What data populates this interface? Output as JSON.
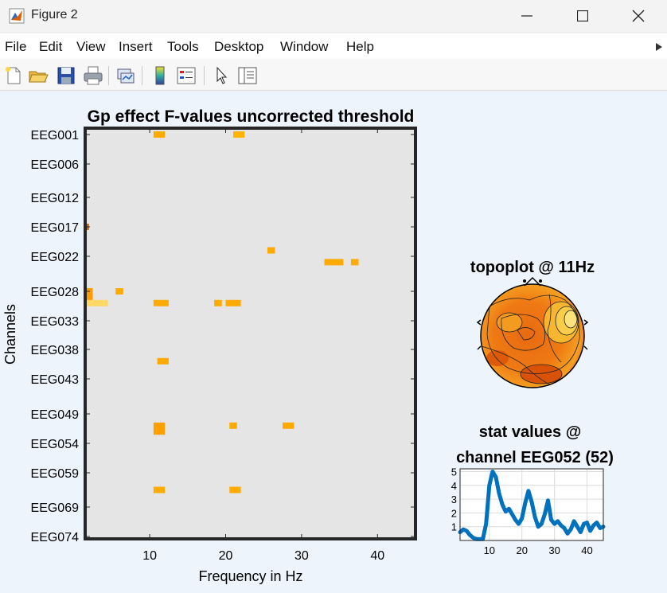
{
  "window": {
    "title": "Figure 2",
    "controls": [
      "minimize",
      "maximize",
      "close"
    ]
  },
  "menu": {
    "items": [
      "File",
      "Edit",
      "View",
      "Insert",
      "Tools",
      "Desktop",
      "Window",
      "Help"
    ]
  },
  "toolbar": {
    "icons": [
      "new-figure-icon",
      "open-file-icon",
      "save-icon",
      "print-icon",
      "link-plot-icon",
      "insert-colorbar-icon",
      "insert-legend-icon",
      "edit-plot-arrow-icon",
      "show-plot-tools-icon"
    ]
  },
  "heatmap": {
    "title": "Gp effect F-values uncorrected threshold",
    "xlabel": "Frequency in Hz",
    "ylabel": "Channels"
  },
  "topoplot": {
    "title": "topoplot @ 11Hz"
  },
  "lineplot": {
    "title_line1": "stat values @",
    "title_line2": "channel EEG052 (52)"
  },
  "chart_data": [
    {
      "type": "heatmap",
      "title": "Gp effect F-values uncorrected threshold",
      "xlabel": "Frequency in Hz",
      "ylabel": "Channels",
      "xlim": [
        1.5,
        45
      ],
      "x_ticks": [
        10,
        20,
        30,
        40
      ],
      "y_tick_labels": [
        "EEG001",
        "EEG006",
        "EEG012",
        "EEG017",
        "EEG022",
        "EEG028",
        "EEG033",
        "EEG038",
        "EEG043",
        "EEG049",
        "EEG054",
        "EEG059",
        "EEG069",
        "EEG074"
      ],
      "y_tick_channels": [
        1,
        6,
        12,
        17,
        22,
        28,
        33,
        38,
        43,
        49,
        54,
        59,
        65,
        70
      ],
      "ylim": [
        1,
        70
      ],
      "background": "#e5e5e5",
      "significant_cells": [
        {
          "x0": 10.5,
          "x1": 12,
          "ch0": 1,
          "ch1": 1,
          "color": "#ffaa00"
        },
        {
          "x0": 21,
          "x1": 22.5,
          "ch0": 1,
          "ch1": 1,
          "color": "#ffb400"
        },
        {
          "x0": 1.5,
          "x1": 2,
          "ch0": 17,
          "ch1": 17,
          "color": "#cc6600"
        },
        {
          "x0": 25.5,
          "x1": 26.5,
          "ch0": 21,
          "ch1": 21,
          "color": "#ffaa00"
        },
        {
          "x0": 33,
          "x1": 35.5,
          "ch0": 23,
          "ch1": 23,
          "color": "#ffaa00"
        },
        {
          "x0": 36.5,
          "x1": 37.5,
          "ch0": 23,
          "ch1": 23,
          "color": "#ffaa00"
        },
        {
          "x0": 1.5,
          "x1": 2.5,
          "ch0": 28,
          "ch1": 29,
          "color": "#ff9a00"
        },
        {
          "x0": 5.5,
          "x1": 6.5,
          "ch0": 28,
          "ch1": 28,
          "color": "#ffaa00"
        },
        {
          "x0": 1.5,
          "x1": 4.5,
          "ch0": 30,
          "ch1": 30,
          "color": "#ffd866"
        },
        {
          "x0": 10.5,
          "x1": 12.5,
          "ch0": 30,
          "ch1": 30,
          "color": "#ffaa00"
        },
        {
          "x0": 18.5,
          "x1": 19.5,
          "ch0": 30,
          "ch1": 30,
          "color": "#ffaa00"
        },
        {
          "x0": 20,
          "x1": 22,
          "ch0": 30,
          "ch1": 30,
          "color": "#ffaa00"
        },
        {
          "x0": 11,
          "x1": 12.5,
          "ch0": 40,
          "ch1": 40,
          "color": "#ffaa00"
        },
        {
          "x0": 20.5,
          "x1": 21.5,
          "ch0": 51,
          "ch1": 51,
          "color": "#ffaa00"
        },
        {
          "x0": 27.5,
          "x1": 29,
          "ch0": 51,
          "ch1": 51,
          "color": "#ffaa00"
        },
        {
          "x0": 10.5,
          "x1": 12,
          "ch0": 51,
          "ch1": 52,
          "color": "#ffa000"
        },
        {
          "x0": 10.5,
          "x1": 12,
          "ch0": 62,
          "ch1": 62,
          "color": "#ffaa00"
        },
        {
          "x0": 20.5,
          "x1": 22,
          "ch0": 62,
          "ch1": 62,
          "color": "#ffaa00"
        }
      ]
    },
    {
      "type": "line",
      "title": "stat values @ channel EEG052 (52)",
      "xlim": [
        1,
        45
      ],
      "ylim": [
        0,
        5.2
      ],
      "x_ticks": [
        10,
        20,
        30,
        40
      ],
      "y_ticks": [
        1,
        2,
        3,
        4,
        5
      ],
      "series": [
        {
          "color": "#0072bd",
          "x": [
            1,
            2,
            3,
            4,
            5,
            6,
            7,
            8,
            9,
            10,
            11,
            12,
            13,
            14,
            15,
            16,
            17,
            18,
            19,
            20,
            21,
            22,
            23,
            24,
            25,
            26,
            27,
            28,
            29,
            30,
            31,
            32,
            33,
            34,
            35,
            36,
            37,
            38,
            39,
            40,
            41,
            42,
            43,
            44,
            45
          ],
          "y": [
            0.6,
            0.8,
            0.7,
            0.4,
            0.2,
            0.1,
            0.1,
            0.1,
            1.2,
            4.0,
            5.0,
            4.6,
            3.4,
            2.6,
            2.1,
            2.3,
            1.9,
            1.5,
            1.2,
            1.6,
            2.7,
            3.6,
            2.8,
            1.7,
            1.0,
            1.2,
            1.9,
            2.9,
            1.5,
            1.2,
            1.4,
            1.1,
            0.9,
            0.5,
            0.8,
            1.4,
            1.0,
            0.6,
            1.2,
            1.3,
            0.7,
            1.1,
            1.3,
            0.9,
            1.0
          ]
        }
      ]
    }
  ]
}
